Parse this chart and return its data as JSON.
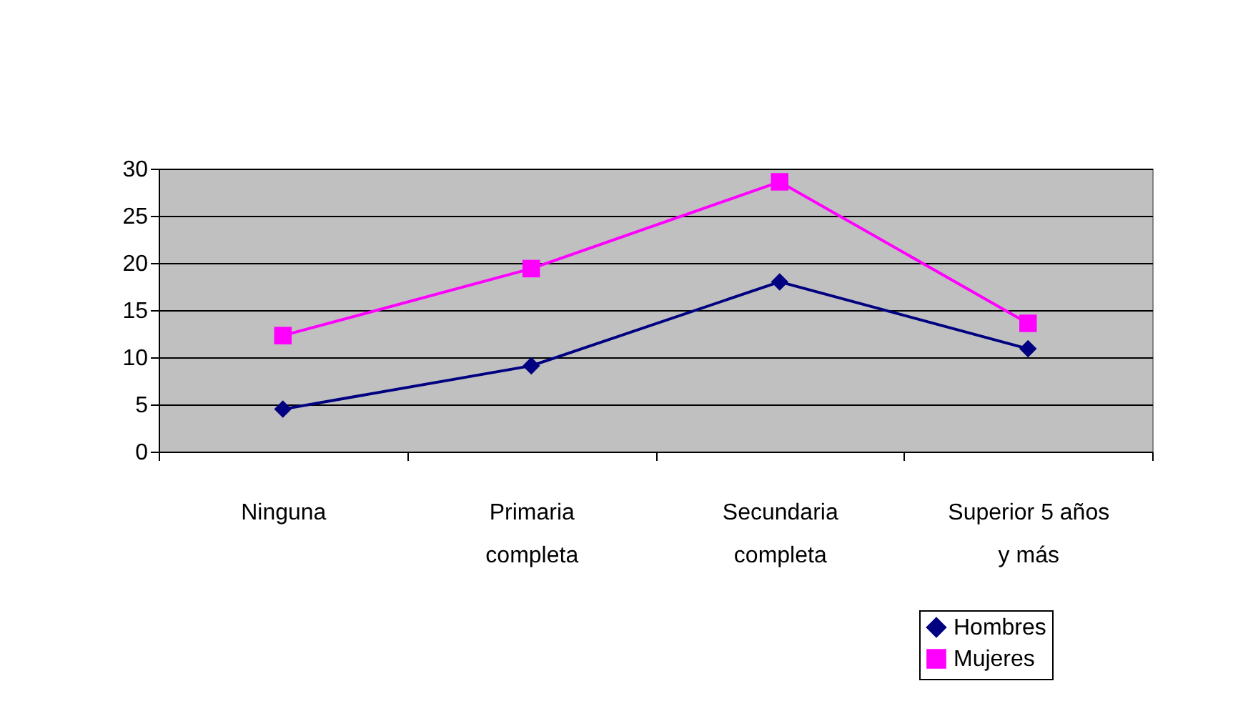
{
  "chart_data": {
    "type": "line",
    "categories": [
      "Ninguna",
      "Primaria completa",
      "Secundaria completa",
      "Superior 5 años y más"
    ],
    "series": [
      {
        "name": "Hombres",
        "color": "#000080",
        "marker": "diamond",
        "values": [
          4.5,
          9.1,
          18.0,
          10.9
        ]
      },
      {
        "name": "Mujeres",
        "color": "#ff00ff",
        "marker": "square",
        "values": [
          12.3,
          19.4,
          28.6,
          13.6
        ]
      }
    ],
    "ylim": [
      0,
      30
    ],
    "yticks": [
      0,
      5,
      10,
      15,
      20,
      25,
      30
    ],
    "grid": "y",
    "legend": "bottom right"
  }
}
